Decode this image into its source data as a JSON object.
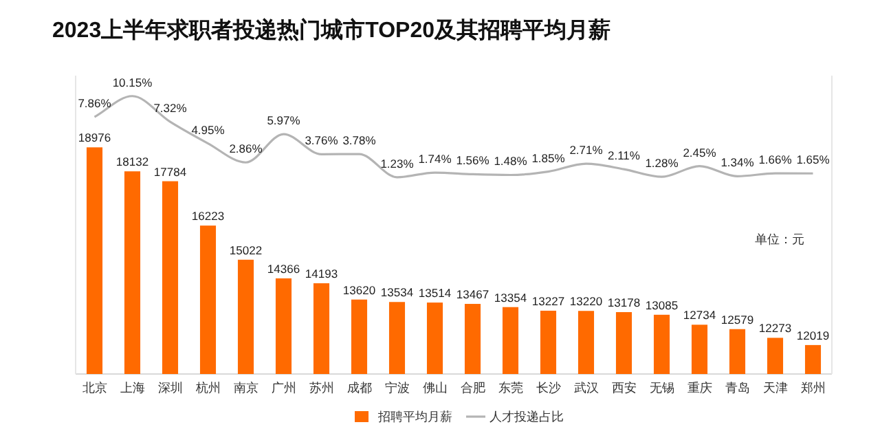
{
  "chart_data": {
    "type": "bar",
    "title": "2023上半年求职者投递热门城市TOP20及其招聘平均月薪",
    "categories": [
      "北京",
      "上海",
      "深圳",
      "杭州",
      "南京",
      "广州",
      "苏州",
      "成都",
      "宁波",
      "佛山",
      "合肥",
      "东莞",
      "长沙",
      "武汉",
      "西安",
      "无锡",
      "重庆",
      "青岛",
      "天津",
      "郑州"
    ],
    "series": [
      {
        "name": "招聘平均月薪",
        "color": "#ff6a00",
        "values": [
          18976,
          18132,
          17784,
          16223,
          15022,
          14366,
          14193,
          13620,
          13534,
          13514,
          13467,
          13354,
          13227,
          13220,
          13178,
          13085,
          12734,
          12579,
          12273,
          12019
        ],
        "value_labels": [
          "18976",
          "18132",
          "17784",
          "16223",
          "15022",
          "14366",
          "14193",
          "13620",
          "13534",
          "13514",
          "13467",
          "13354",
          "13227",
          "13220",
          "13178",
          "13085",
          "12734",
          "12579",
          "12273",
          "12019"
        ]
      },
      {
        "name": "人才投递占比",
        "type": "line",
        "axis": "y2",
        "color": "#b4b4b4",
        "values": [
          7.86,
          10.15,
          7.32,
          4.95,
          2.86,
          5.97,
          3.76,
          3.78,
          1.23,
          1.74,
          1.56,
          1.48,
          1.85,
          2.71,
          2.11,
          1.28,
          2.45,
          1.34,
          1.66,
          1.65
        ],
        "value_labels": [
          "7.86%",
          "10.15%",
          "7.32%",
          "4.95%",
          "2.86%",
          "5.97%",
          "3.76%",
          "3.78%",
          "1.23%",
          "1.74%",
          "1.56%",
          "1.48%",
          "1.85%",
          "2.71%",
          "2.11%",
          "1.28%",
          "2.45%",
          "1.34%",
          "1.66%",
          "1.65%"
        ]
      }
    ],
    "ylim": [
      11000,
      21500
    ],
    "y2lim": [
      -20.4,
      12.4
    ],
    "tick_labels": "x",
    "annotations": [
      "单位：元"
    ],
    "legend": "bottom"
  }
}
